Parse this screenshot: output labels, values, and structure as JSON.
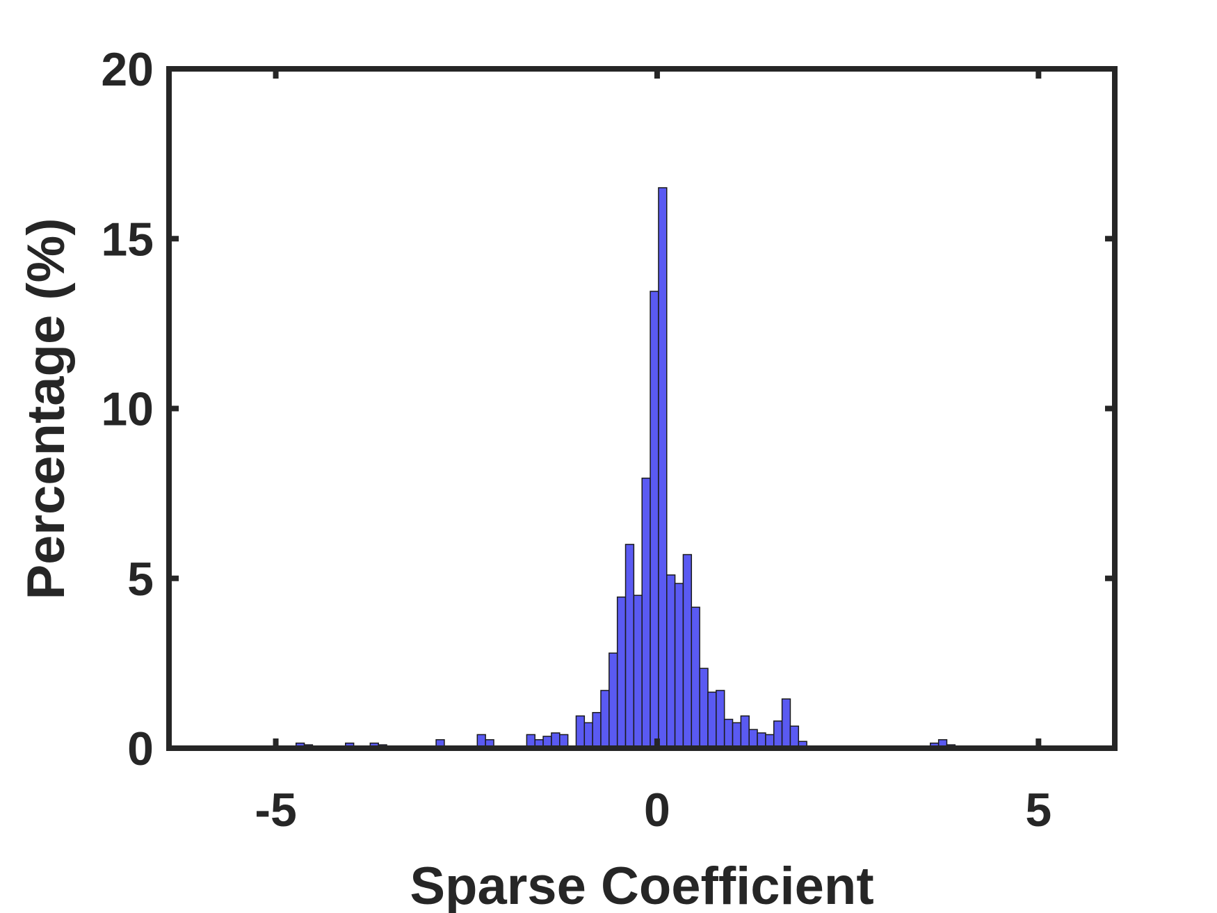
{
  "chart_data": {
    "type": "histogram",
    "xlabel": "Sparse Coefficient",
    "ylabel": "Percentage (%)",
    "bins": [
      -4.95,
      -4.842,
      -4.734,
      -4.626,
      -4.518,
      -4.41,
      -4.302,
      -4.194,
      -4.086,
      -3.978,
      -3.87,
      -3.762,
      -3.654,
      -3.546,
      -3.438,
      -3.33,
      -3.222,
      -3.114,
      -3.006,
      -2.898,
      -2.79,
      -2.682,
      -2.574,
      -2.466,
      -2.358,
      -2.25,
      -2.142,
      -2.034,
      -1.926,
      -1.818,
      -1.71,
      -1.602,
      -1.494,
      -1.386,
      -1.278,
      -1.17,
      -1.062,
      -0.954,
      -0.846,
      -0.738,
      -0.63,
      -0.522,
      -0.414,
      -0.306,
      -0.198,
      -0.09,
      0.018,
      0.126,
      0.234,
      0.342,
      0.45,
      0.558,
      0.666,
      0.774,
      0.882,
      0.99,
      1.098,
      1.206,
      1.314,
      1.422,
      1.53,
      1.638,
      1.746,
      1.854,
      1.962,
      2.07,
      2.178,
      2.286,
      2.394,
      2.502,
      2.61,
      2.718,
      2.826,
      2.934,
      3.042,
      3.15,
      3.258,
      3.366,
      3.474,
      3.582,
      3.69,
      3.798,
      3.906,
      4.014,
      4.122,
      4.23,
      4.338
    ],
    "values": [
      0,
      0,
      0.15,
      0.1,
      0,
      0,
      0,
      0,
      0.15,
      0,
      0,
      0.15,
      0.1,
      0,
      0,
      0,
      0,
      0,
      0.05,
      0.25,
      0,
      0,
      0,
      0.05,
      0.4,
      0.25,
      0,
      0,
      0,
      0,
      0.4,
      0.25,
      0.35,
      0.45,
      0.4,
      0,
      0.95,
      0.75,
      1.05,
      1.7,
      2.8,
      4.45,
      6.0,
      4.5,
      7.95,
      13.45,
      16.5,
      5.1,
      4.85,
      5.7,
      4.15,
      2.35,
      1.65,
      1.7,
      0.85,
      0.75,
      0.95,
      0.55,
      0.45,
      0.4,
      0.8,
      1.45,
      0.65,
      0.2,
      0,
      0,
      0,
      0,
      0.05,
      0,
      0,
      0.05,
      0.05,
      0,
      0,
      0.05,
      0,
      0,
      0,
      0.15,
      0.25,
      0.1,
      0,
      0,
      0,
      0.05
    ],
    "color": "#5a5af2",
    "xlim": [
      -6.4,
      6
    ],
    "xticks": [
      -5,
      0,
      5
    ],
    "ylim": [
      0,
      20
    ],
    "yticks": [
      0,
      5,
      10,
      15,
      20
    ]
  }
}
